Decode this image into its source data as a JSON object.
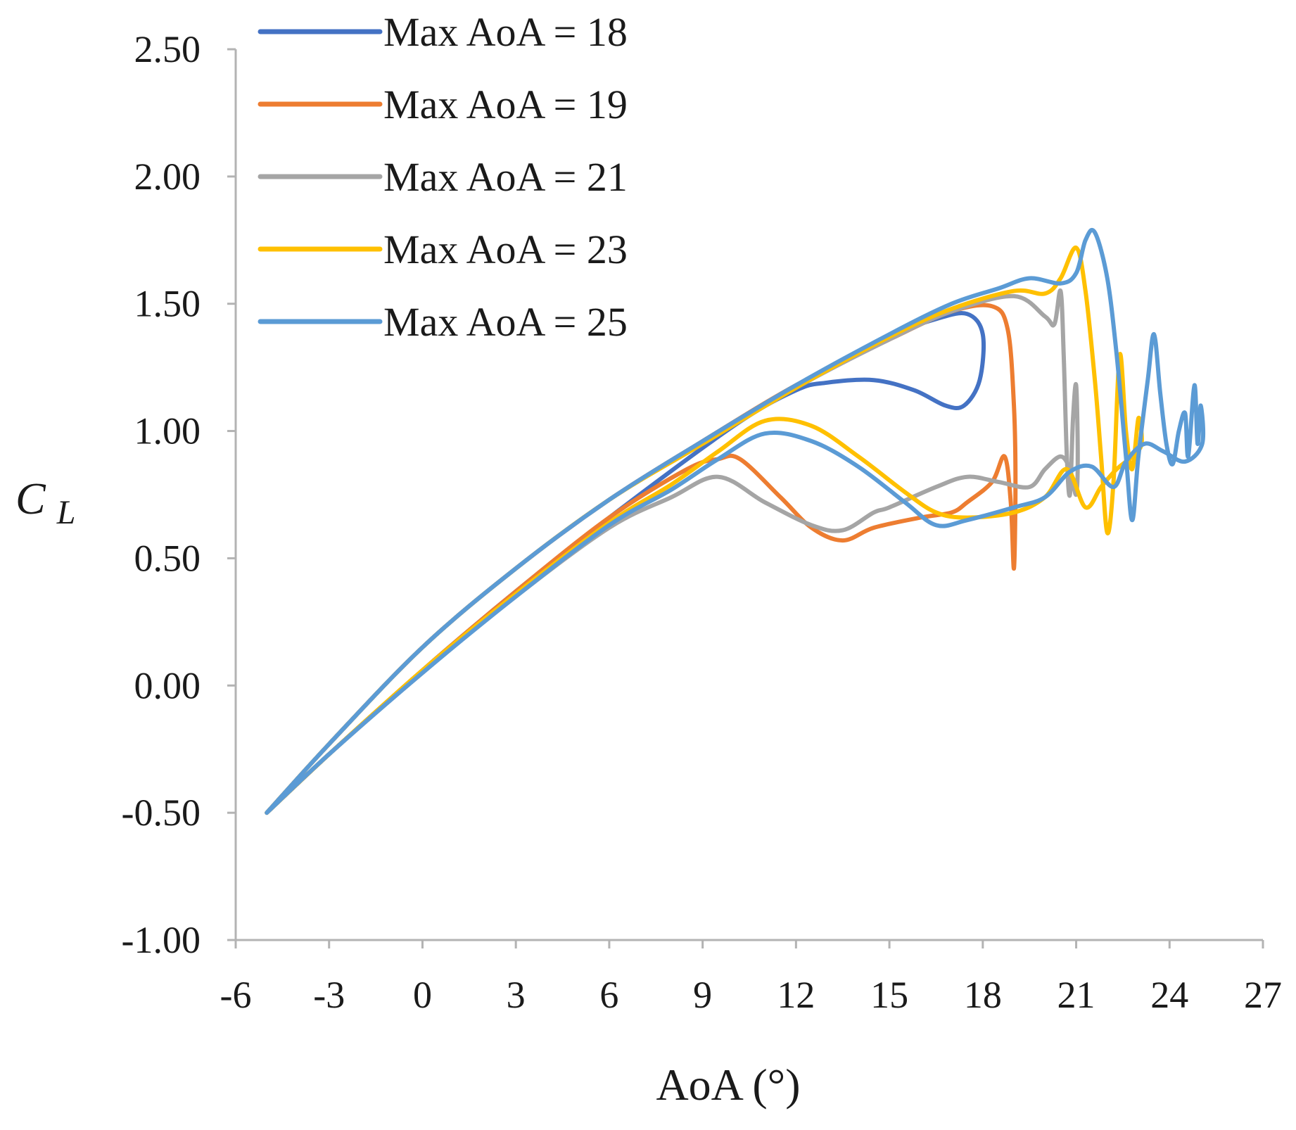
{
  "chart_data": {
    "type": "line",
    "title": "",
    "xlabel": "AoA (°)",
    "ylabel": "C",
    "ylabel_subscript": "L",
    "xlim": [
      -6,
      27
    ],
    "ylim": [
      -1.0,
      2.5
    ],
    "xticks": [
      -6,
      -3,
      0,
      3,
      6,
      9,
      12,
      15,
      18,
      21,
      24,
      27
    ],
    "xtick_labels": [
      "-6",
      "-3",
      "0",
      "3",
      "6",
      "9",
      "12",
      "15",
      "18",
      "21",
      "24",
      "27"
    ],
    "yticks": [
      -1.0,
      -0.5,
      0.0,
      0.5,
      1.0,
      1.5,
      2.0,
      2.5
    ],
    "ytick_labels": [
      "-1.00",
      "-0.50",
      "0.00",
      "0.50",
      "1.00",
      "1.50",
      "2.00",
      "2.50"
    ],
    "grid": false,
    "legend_position": "top-left",
    "series": [
      {
        "name": "Max AoA = 18",
        "color": "#4472C4",
        "points": [
          [
            -5,
            -0.5
          ],
          [
            -3,
            -0.23
          ],
          [
            0,
            0.15
          ],
          [
            3,
            0.46
          ],
          [
            6,
            0.73
          ],
          [
            9,
            0.96
          ],
          [
            12,
            1.18
          ],
          [
            15,
            1.37
          ],
          [
            16.5,
            1.44
          ],
          [
            17.5,
            1.46
          ],
          [
            18,
            1.38
          ],
          [
            17.9,
            1.2
          ],
          [
            17.4,
            1.1
          ],
          [
            16.8,
            1.1
          ],
          [
            15.8,
            1.16
          ],
          [
            14.5,
            1.2
          ],
          [
            13,
            1.19
          ],
          [
            12,
            1.16
          ],
          [
            10,
            1.02
          ],
          [
            6,
            0.66
          ],
          [
            3,
            0.37
          ],
          [
            0,
            0.06
          ],
          [
            -3,
            -0.27
          ],
          [
            -5,
            -0.5
          ]
        ]
      },
      {
        "name": "Max AoA = 19",
        "color": "#ED7D31",
        "points": [
          [
            -5,
            -0.5
          ],
          [
            -3,
            -0.23
          ],
          [
            0,
            0.15
          ],
          [
            3,
            0.46
          ],
          [
            6,
            0.73
          ],
          [
            9,
            0.96
          ],
          [
            12,
            1.18
          ],
          [
            15,
            1.36
          ],
          [
            17,
            1.47
          ],
          [
            18.3,
            1.49
          ],
          [
            18.8,
            1.4
          ],
          [
            19,
            1.1
          ],
          [
            19.05,
            0.8
          ],
          [
            19,
            0.46
          ],
          [
            18.9,
            0.72
          ],
          [
            18.7,
            0.9
          ],
          [
            18.3,
            0.8
          ],
          [
            17.5,
            0.72
          ],
          [
            17,
            0.68
          ],
          [
            16,
            0.66
          ],
          [
            14.5,
            0.62
          ],
          [
            13.5,
            0.57
          ],
          [
            12.5,
            0.62
          ],
          [
            11.5,
            0.74
          ],
          [
            10.2,
            0.89
          ],
          [
            9.5,
            0.89
          ],
          [
            8.5,
            0.85
          ],
          [
            6,
            0.66
          ],
          [
            3,
            0.37
          ],
          [
            0,
            0.06
          ],
          [
            -3,
            -0.27
          ],
          [
            -5,
            -0.5
          ]
        ]
      },
      {
        "name": "Max AoA = 21",
        "color": "#A5A5A5",
        "points": [
          [
            -5,
            -0.5
          ],
          [
            -3,
            -0.23
          ],
          [
            0,
            0.15
          ],
          [
            3,
            0.46
          ],
          [
            6,
            0.73
          ],
          [
            9,
            0.95
          ],
          [
            12,
            1.17
          ],
          [
            15,
            1.36
          ],
          [
            17,
            1.47
          ],
          [
            19,
            1.53
          ],
          [
            20,
            1.45
          ],
          [
            20.3,
            1.42
          ],
          [
            20.5,
            1.55
          ],
          [
            20.6,
            1.3
          ],
          [
            20.7,
            0.9
          ],
          [
            20.8,
            0.75
          ],
          [
            20.9,
            1.05
          ],
          [
            21,
            1.18
          ],
          [
            21.05,
            0.9
          ],
          [
            21,
            0.75
          ],
          [
            20.8,
            0.85
          ],
          [
            20.5,
            0.9
          ],
          [
            20,
            0.85
          ],
          [
            19.5,
            0.78
          ],
          [
            18.5,
            0.8
          ],
          [
            17.5,
            0.82
          ],
          [
            16.5,
            0.78
          ],
          [
            15,
            0.7
          ],
          [
            14.5,
            0.68
          ],
          [
            13.5,
            0.61
          ],
          [
            12.5,
            0.63
          ],
          [
            11,
            0.72
          ],
          [
            9.5,
            0.82
          ],
          [
            8,
            0.74
          ],
          [
            6,
            0.62
          ],
          [
            3,
            0.35
          ],
          [
            0,
            0.05
          ],
          [
            -3,
            -0.27
          ],
          [
            -5,
            -0.5
          ]
        ]
      },
      {
        "name": "Max AoA = 23",
        "color": "#FFC000",
        "points": [
          [
            -5,
            -0.5
          ],
          [
            -3,
            -0.23
          ],
          [
            0,
            0.15
          ],
          [
            3,
            0.46
          ],
          [
            6,
            0.73
          ],
          [
            9,
            0.95
          ],
          [
            12,
            1.17
          ],
          [
            15,
            1.37
          ],
          [
            17,
            1.48
          ],
          [
            19,
            1.55
          ],
          [
            20,
            1.54
          ],
          [
            20.5,
            1.6
          ],
          [
            21,
            1.72
          ],
          [
            21.3,
            1.55
          ],
          [
            21.6,
            1.2
          ],
          [
            21.8,
            0.9
          ],
          [
            22,
            0.6
          ],
          [
            22.2,
            0.8
          ],
          [
            22.4,
            1.3
          ],
          [
            22.6,
            1.0
          ],
          [
            22.8,
            0.85
          ],
          [
            23,
            1.05
          ],
          [
            23.1,
            0.95
          ],
          [
            22.8,
            0.9
          ],
          [
            22.3,
            0.85
          ],
          [
            21.8,
            0.78
          ],
          [
            21.3,
            0.7
          ],
          [
            20.7,
            0.85
          ],
          [
            20,
            0.74
          ],
          [
            19,
            0.68
          ],
          [
            17.5,
            0.66
          ],
          [
            16.5,
            0.68
          ],
          [
            15.5,
            0.76
          ],
          [
            14,
            0.9
          ],
          [
            12.5,
            1.02
          ],
          [
            11,
            1.04
          ],
          [
            9.5,
            0.92
          ],
          [
            8,
            0.79
          ],
          [
            6,
            0.64
          ],
          [
            3,
            0.36
          ],
          [
            0,
            0.06
          ],
          [
            -3,
            -0.27
          ],
          [
            -5,
            -0.5
          ]
        ]
      },
      {
        "name": "Max AoA = 25",
        "color": "#5B9BD5",
        "points": [
          [
            -5,
            -0.5
          ],
          [
            -3,
            -0.23
          ],
          [
            0,
            0.15
          ],
          [
            3,
            0.46
          ],
          [
            6,
            0.73
          ],
          [
            9,
            0.96
          ],
          [
            12,
            1.18
          ],
          [
            15,
            1.38
          ],
          [
            17,
            1.5
          ],
          [
            18.5,
            1.56
          ],
          [
            19.5,
            1.6
          ],
          [
            20.5,
            1.58
          ],
          [
            21,
            1.62
          ],
          [
            21.3,
            1.75
          ],
          [
            21.6,
            1.78
          ],
          [
            22,
            1.6
          ],
          [
            22.3,
            1.3
          ],
          [
            22.6,
            0.9
          ],
          [
            22.8,
            0.65
          ],
          [
            23,
            0.9
          ],
          [
            23.3,
            1.2
          ],
          [
            23.5,
            1.38
          ],
          [
            23.7,
            1.15
          ],
          [
            23.9,
            0.95
          ],
          [
            24.1,
            0.87
          ],
          [
            24.3,
            1.0
          ],
          [
            24.5,
            1.07
          ],
          [
            24.6,
            0.9
          ],
          [
            24.8,
            1.18
          ],
          [
            24.9,
            0.95
          ],
          [
            25,
            1.1
          ],
          [
            25.05,
            0.95
          ],
          [
            24.5,
            0.88
          ],
          [
            23.8,
            0.92
          ],
          [
            23.2,
            0.95
          ],
          [
            22.6,
            0.88
          ],
          [
            22.2,
            0.78
          ],
          [
            21.5,
            0.86
          ],
          [
            20.8,
            0.84
          ],
          [
            20,
            0.74
          ],
          [
            19,
            0.7
          ],
          [
            17.5,
            0.65
          ],
          [
            16.5,
            0.63
          ],
          [
            15.5,
            0.72
          ],
          [
            14,
            0.86
          ],
          [
            12.5,
            0.96
          ],
          [
            11,
            0.99
          ],
          [
            9.5,
            0.89
          ],
          [
            8,
            0.77
          ],
          [
            6,
            0.63
          ],
          [
            3,
            0.35
          ],
          [
            0,
            0.05
          ],
          [
            -3,
            -0.27
          ],
          [
            -5,
            -0.5
          ]
        ]
      }
    ]
  }
}
